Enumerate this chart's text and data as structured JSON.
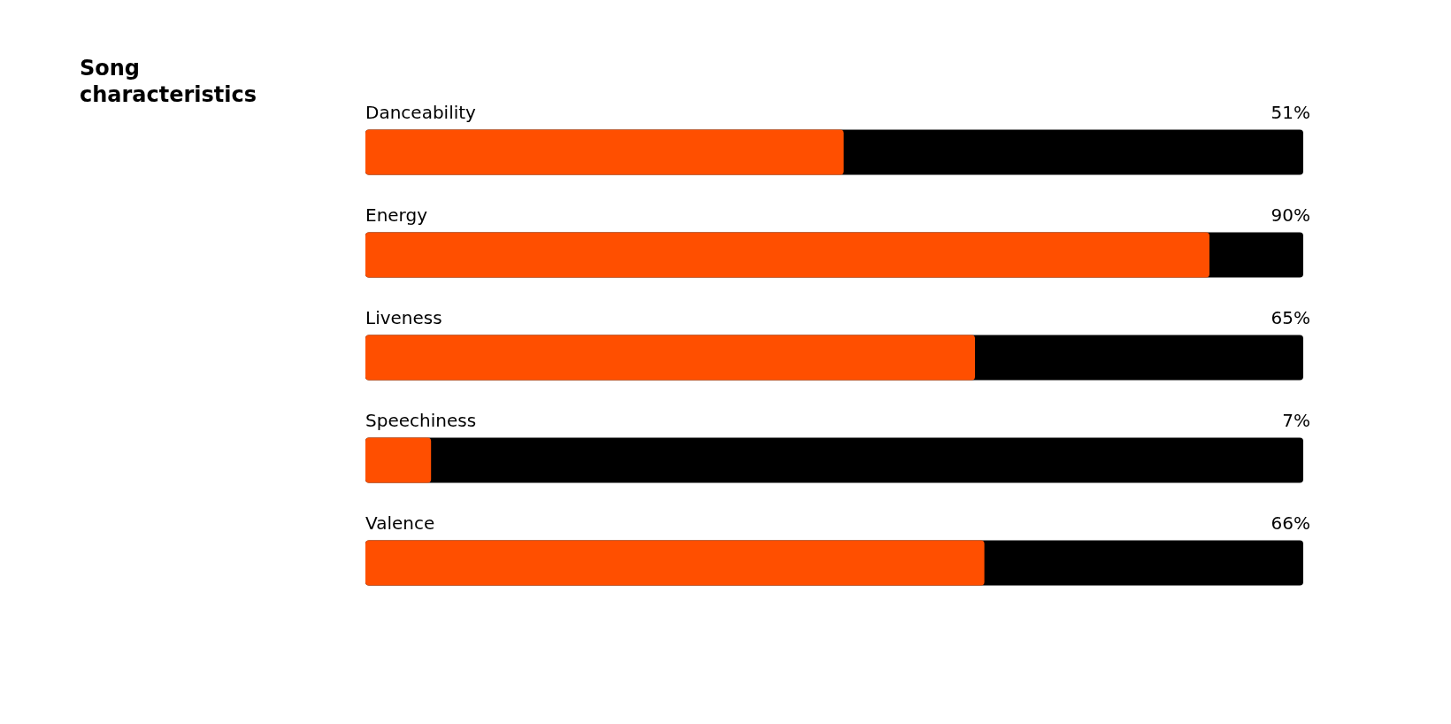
{
  "chart_data": {
    "type": "bar",
    "title": "Song characteristics",
    "orientation": "horizontal",
    "categories": [
      "Danceability",
      "Energy",
      "Liveness",
      "Speechiness",
      "Valence"
    ],
    "series": [
      {
        "color": "#ff4f00",
        "values": [
          51,
          90,
          65,
          7,
          66
        ],
        "value_labels": [
          "51%",
          "90%",
          "65%",
          "7%",
          "66%"
        ]
      }
    ],
    "xlim": [
      0,
      100
    ],
    "tick_labels": false,
    "legend": false
  }
}
